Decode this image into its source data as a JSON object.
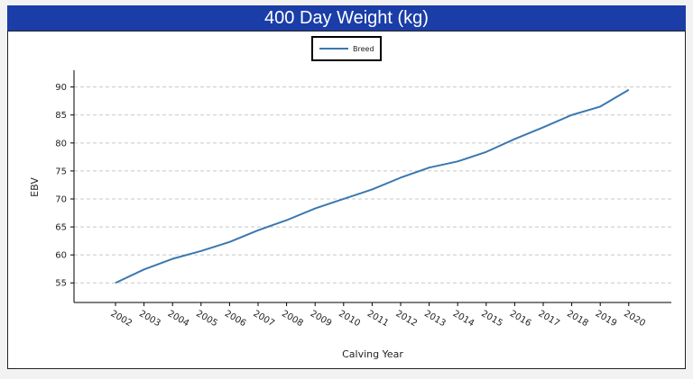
{
  "chart_data": {
    "type": "line",
    "title": "400 Day Weight (kg)",
    "xlabel": "Calving Year",
    "ylabel": "EBV",
    "categories": [
      "2002",
      "2003",
      "2004",
      "2005",
      "2006",
      "2007",
      "2008",
      "2009",
      "2010",
      "2011",
      "2012",
      "2013",
      "2014",
      "2015",
      "2016",
      "2017",
      "2018",
      "2019",
      "2020"
    ],
    "series": [
      {
        "name": "Breed",
        "values": [
          55.0,
          57.4,
          59.3,
          60.7,
          62.3,
          64.4,
          66.2,
          68.3,
          70.0,
          71.7,
          73.8,
          75.6,
          76.7,
          78.4,
          80.7,
          82.8,
          85.0,
          86.5,
          89.5
        ]
      }
    ],
    "y_ticks": [
      55,
      60,
      65,
      70,
      75,
      80,
      85,
      90
    ],
    "ylim": [
      51.5,
      93
    ],
    "grid": true,
    "legend": "top-center",
    "colors": {
      "line": "#3a78b0",
      "title_bg": "#1a3da8",
      "title_fg": "#ffffff"
    }
  }
}
